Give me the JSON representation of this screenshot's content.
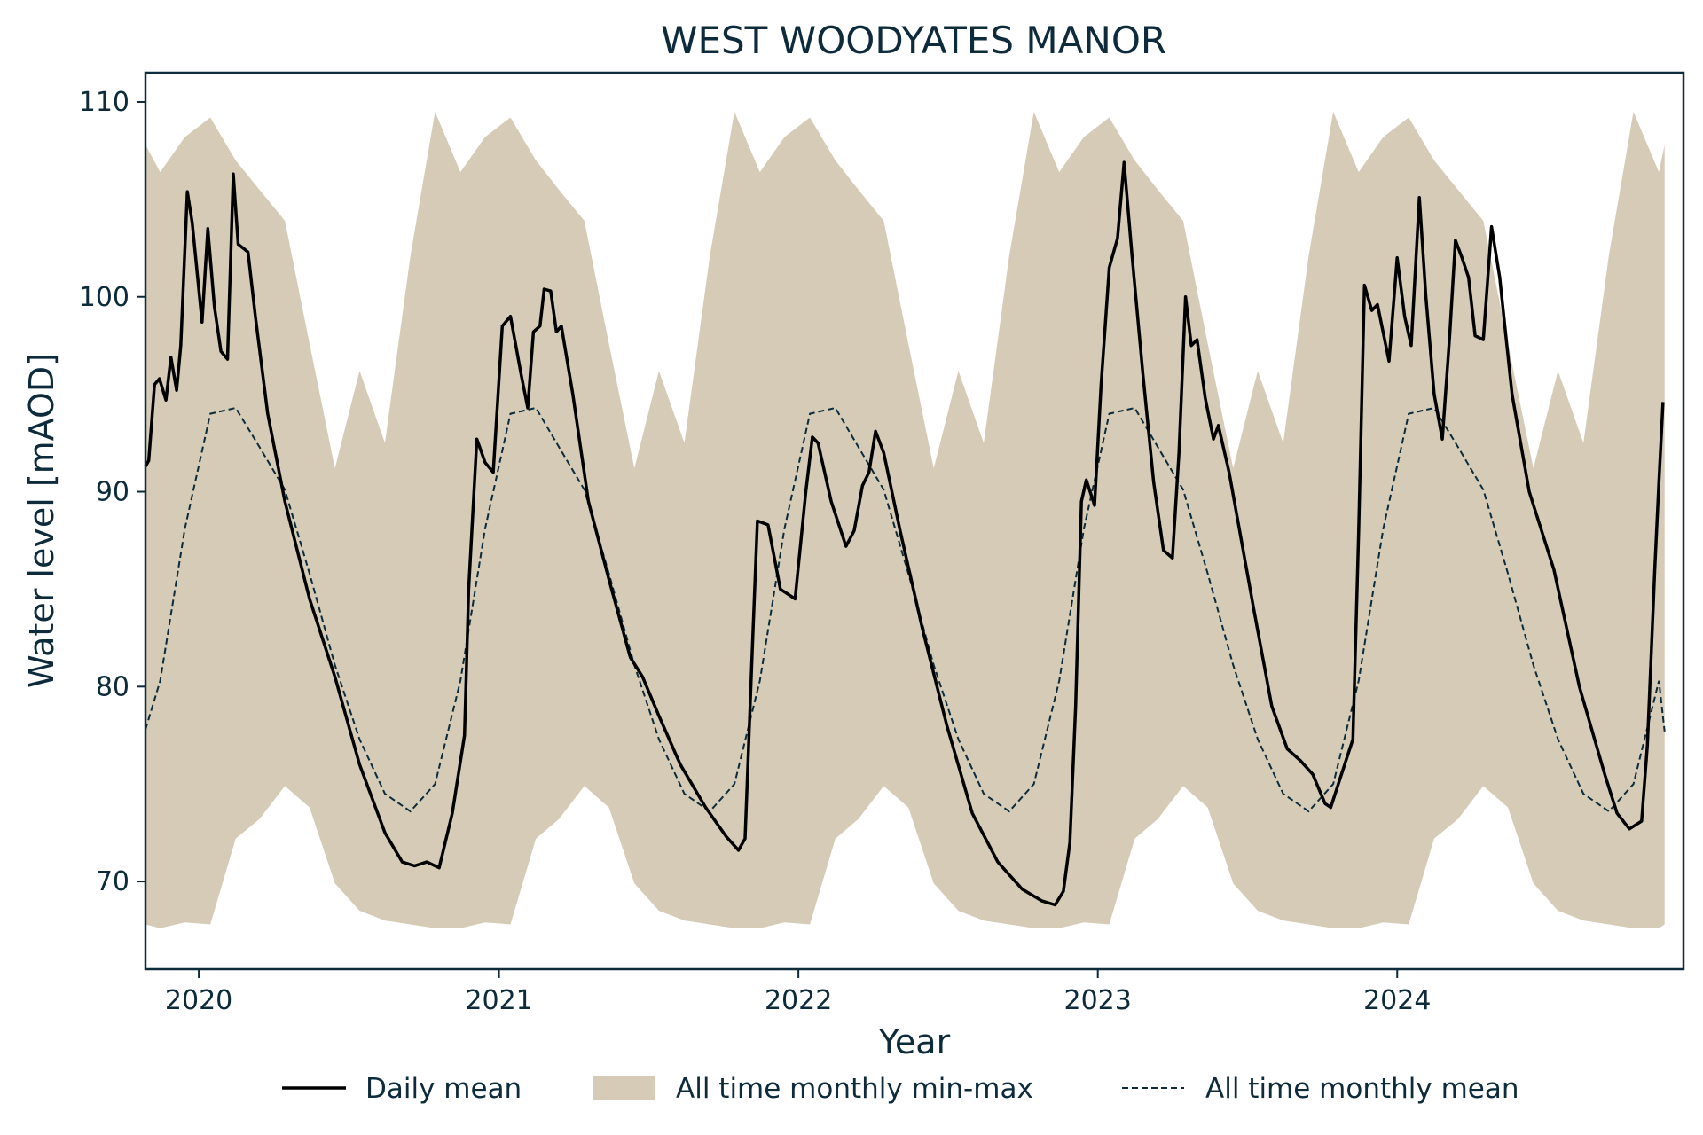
{
  "chart_data": {
    "type": "line",
    "title": "WEST WOODYATES MANOR",
    "xlabel": "Year",
    "ylabel": "Water level [mAOD]",
    "x_ticks": [
      "2020",
      "2021",
      "2022",
      "2023",
      "2024"
    ],
    "y_ticks": [
      70,
      80,
      90,
      100,
      110
    ],
    "xlim": [
      "2019-10-28",
      "2024-12-15"
    ],
    "ylim": [
      65.5,
      111.5
    ],
    "grid": false,
    "legend_position": "bottom",
    "colors": {
      "daily": "#000000",
      "range": "#d5cbb7",
      "mean": "#0d2b3a",
      "axes": "#0d2b3a"
    },
    "series": [
      {
        "name": "Daily mean",
        "kind": "line",
        "points": [
          [
            "2019-10-28",
            91.3
          ],
          [
            "2019-11-01",
            91.6
          ],
          [
            "2019-11-08",
            95.5
          ],
          [
            "2019-11-14",
            95.8
          ],
          [
            "2019-11-22",
            94.7
          ],
          [
            "2019-11-28",
            96.9
          ],
          [
            "2019-12-05",
            95.2
          ],
          [
            "2019-12-10",
            97.5
          ],
          [
            "2019-12-18",
            105.4
          ],
          [
            "2019-12-24",
            103.8
          ],
          [
            "2020-01-05",
            98.7
          ],
          [
            "2020-01-12",
            103.5
          ],
          [
            "2020-01-20",
            99.5
          ],
          [
            "2020-01-28",
            97.2
          ],
          [
            "2020-02-05",
            96.8
          ],
          [
            "2020-02-12",
            106.3
          ],
          [
            "2020-02-18",
            102.7
          ],
          [
            "2020-03-01",
            102.3
          ],
          [
            "2020-03-10",
            99.0
          ],
          [
            "2020-03-25",
            94.0
          ],
          [
            "2020-04-15",
            89.5
          ],
          [
            "2020-05-15",
            84.5
          ],
          [
            "2020-06-15",
            80.5
          ],
          [
            "2020-07-15",
            76.0
          ],
          [
            "2020-08-15",
            72.5
          ],
          [
            "2020-09-05",
            71.0
          ],
          [
            "2020-09-20",
            70.8
          ],
          [
            "2020-10-05",
            71.0
          ],
          [
            "2020-10-20",
            70.7
          ],
          [
            "2020-11-05",
            73.5
          ],
          [
            "2020-11-20",
            77.5
          ],
          [
            "2020-11-25",
            85.0
          ],
          [
            "2020-12-05",
            92.7
          ],
          [
            "2020-12-15",
            91.5
          ],
          [
            "2020-12-25",
            91.0
          ],
          [
            "2021-01-05",
            98.5
          ],
          [
            "2021-01-15",
            99.0
          ],
          [
            "2021-01-28",
            96.0
          ],
          [
            "2021-02-05",
            94.3
          ],
          [
            "2021-02-12",
            98.2
          ],
          [
            "2021-02-20",
            98.5
          ],
          [
            "2021-02-25",
            100.4
          ],
          [
            "2021-03-05",
            100.3
          ],
          [
            "2021-03-12",
            98.2
          ],
          [
            "2021-03-18",
            98.5
          ],
          [
            "2021-04-01",
            95.0
          ],
          [
            "2021-04-20",
            89.5
          ],
          [
            "2021-05-15",
            85.5
          ],
          [
            "2021-06-10",
            81.5
          ],
          [
            "2021-06-25",
            80.5
          ],
          [
            "2021-07-15",
            78.5
          ],
          [
            "2021-08-10",
            76.0
          ],
          [
            "2021-09-10",
            73.8
          ],
          [
            "2021-10-05",
            72.3
          ],
          [
            "2021-10-20",
            71.6
          ],
          [
            "2021-10-28",
            72.2
          ],
          [
            "2021-11-05",
            81.0
          ],
          [
            "2021-11-12",
            88.5
          ],
          [
            "2021-11-25",
            88.3
          ],
          [
            "2021-12-10",
            85.0
          ],
          [
            "2021-12-28",
            84.5
          ],
          [
            "2022-01-10",
            90.0
          ],
          [
            "2022-01-18",
            92.8
          ],
          [
            "2022-01-25",
            92.5
          ],
          [
            "2022-02-10",
            89.5
          ],
          [
            "2022-02-28",
            87.2
          ],
          [
            "2022-03-10",
            88.0
          ],
          [
            "2022-03-20",
            90.3
          ],
          [
            "2022-03-28",
            91.0
          ],
          [
            "2022-04-05",
            93.1
          ],
          [
            "2022-04-15",
            92.0
          ],
          [
            "2022-05-05",
            88.0
          ],
          [
            "2022-06-01",
            83.0
          ],
          [
            "2022-07-01",
            78.0
          ],
          [
            "2022-08-01",
            73.5
          ],
          [
            "2022-09-01",
            71.0
          ],
          [
            "2022-10-01",
            69.6
          ],
          [
            "2022-10-25",
            69.0
          ],
          [
            "2022-11-10",
            68.8
          ],
          [
            "2022-11-20",
            69.5
          ],
          [
            "2022-11-28",
            72.0
          ],
          [
            "2022-12-05",
            79.0
          ],
          [
            "2022-12-12",
            89.5
          ],
          [
            "2022-12-18",
            90.6
          ],
          [
            "2022-12-28",
            89.3
          ],
          [
            "2023-01-05",
            95.5
          ],
          [
            "2023-01-15",
            101.5
          ],
          [
            "2023-01-25",
            103.0
          ],
          [
            "2023-02-02",
            106.9
          ],
          [
            "2023-02-12",
            102.0
          ],
          [
            "2023-02-25",
            96.0
          ],
          [
            "2023-03-10",
            90.5
          ],
          [
            "2023-03-22",
            87.0
          ],
          [
            "2023-04-02",
            86.6
          ],
          [
            "2023-04-10",
            92.0
          ],
          [
            "2023-04-18",
            100.0
          ],
          [
            "2023-04-25",
            97.5
          ],
          [
            "2023-05-02",
            97.8
          ],
          [
            "2023-05-12",
            94.8
          ],
          [
            "2023-05-22",
            92.7
          ],
          [
            "2023-05-28",
            93.4
          ],
          [
            "2023-06-10",
            91.0
          ],
          [
            "2023-07-10",
            84.0
          ],
          [
            "2023-08-01",
            79.0
          ],
          [
            "2023-08-20",
            76.8
          ],
          [
            "2023-09-05",
            76.2
          ],
          [
            "2023-09-20",
            75.5
          ],
          [
            "2023-10-05",
            74.0
          ],
          [
            "2023-10-12",
            73.8
          ],
          [
            "2023-10-25",
            75.5
          ],
          [
            "2023-11-08",
            77.3
          ],
          [
            "2023-11-15",
            88.0
          ],
          [
            "2023-11-22",
            100.6
          ],
          [
            "2023-12-01",
            99.3
          ],
          [
            "2023-12-08",
            99.6
          ],
          [
            "2023-12-22",
            96.7
          ],
          [
            "2024-01-01",
            102.0
          ],
          [
            "2024-01-10",
            99.0
          ],
          [
            "2024-01-18",
            97.5
          ],
          [
            "2024-01-28",
            105.1
          ],
          [
            "2024-02-05",
            100.0
          ],
          [
            "2024-02-15",
            95.0
          ],
          [
            "2024-02-25",
            92.7
          ],
          [
            "2024-03-05",
            98.0
          ],
          [
            "2024-03-12",
            102.9
          ],
          [
            "2024-03-20",
            102.0
          ],
          [
            "2024-03-28",
            101.0
          ],
          [
            "2024-04-05",
            98.0
          ],
          [
            "2024-04-15",
            97.8
          ],
          [
            "2024-04-25",
            103.6
          ],
          [
            "2024-05-05",
            101.0
          ],
          [
            "2024-05-20",
            95.0
          ],
          [
            "2024-06-10",
            90.0
          ],
          [
            "2024-07-10",
            86.0
          ],
          [
            "2024-08-10",
            80.0
          ],
          [
            "2024-09-10",
            75.5
          ],
          [
            "2024-09-25",
            73.5
          ],
          [
            "2024-10-10",
            72.7
          ],
          [
            "2024-10-25",
            73.1
          ],
          [
            "2024-11-01",
            77.0
          ],
          [
            "2024-11-10",
            86.0
          ],
          [
            "2024-11-15",
            90.5
          ],
          [
            "2024-11-20",
            94.6
          ]
        ]
      },
      {
        "name": "All time monthly min-max",
        "kind": "band",
        "monthly_min": [
          67.8,
          72.2,
          73.2,
          74.9,
          73.8,
          69.9,
          68.5,
          68.0,
          67.8,
          67.6,
          67.6,
          67.9,
          67.9
        ],
        "monthly_max": [
          109.2,
          107.0,
          105.5,
          103.9,
          97.6,
          91.2,
          96.2,
          92.5,
          102.1,
          109.5,
          106.4,
          108.2,
          109.2
        ],
        "points": [
          [
            "2019-10-28",
            67.8,
            107.8
          ],
          [
            "2019-11-15",
            67.9,
            106.4
          ]
        ]
      },
      {
        "name": "All time monthly mean",
        "kind": "line",
        "monthly": [
          94.0,
          94.3,
          92.3,
          90.1,
          85.8,
          81.1,
          77.3,
          74.5,
          73.6,
          75.0,
          80.3,
          88.1,
          94.0
        ]
      }
    ]
  }
}
